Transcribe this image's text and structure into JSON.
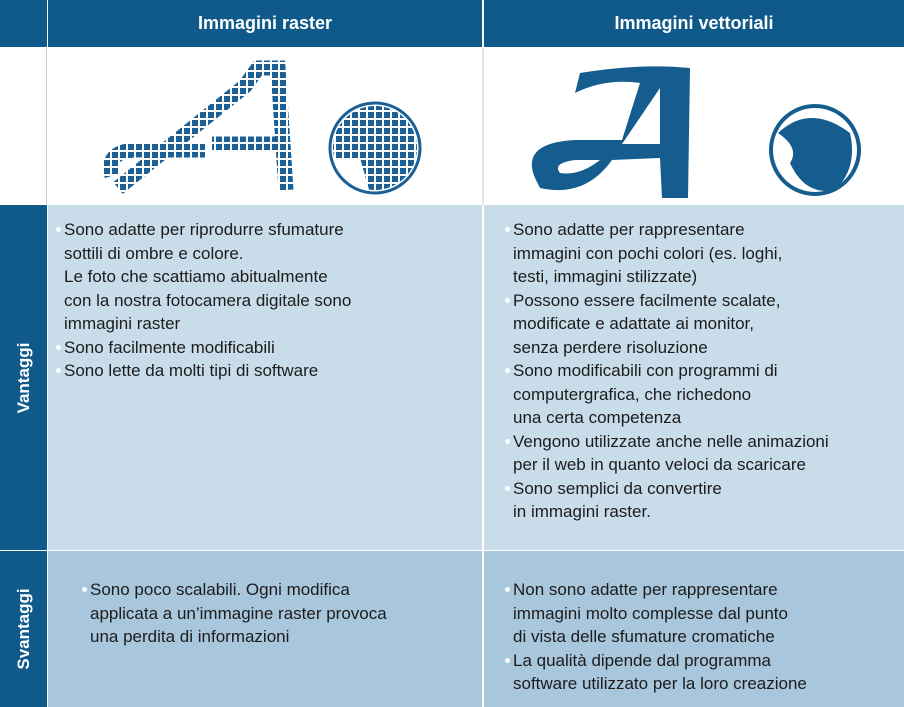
{
  "header": {
    "col1": "Immagini raster",
    "col2": "Immagini vettoriali"
  },
  "rows": [
    {
      "label": "Vantaggi",
      "raster": [
        [
          "Sono adatte per riprodurre sfumature",
          "sottili di ombre e colore.",
          "Le foto che scattiamo abitualmente",
          "con la nostra fotocamera digitale sono",
          "immagini raster"
        ],
        [
          "Sono facilmente modificabili"
        ],
        [
          "Sono lette da molti tipi di software"
        ]
      ],
      "vector": [
        [
          "Sono adatte per rappresentare",
          "immagini con pochi colori (es. loghi,",
          "testi, immagini stilizzate)"
        ],
        [
          "Possono essere facilmente scalate,",
          "modificate e adattate ai monitor,",
          "senza perdere risoluzione"
        ],
        [
          "Sono modificabili con programmi di",
          "computergrafica, che richedono",
          "una certa competenza"
        ],
        [
          "Vengono utilizzate anche nelle animazioni",
          "per il web in quanto veloci da scaricare"
        ],
        [
          "Sono semplici da convertire",
          "in immagini raster."
        ]
      ]
    },
    {
      "label": "Svantaggi",
      "raster": [
        [
          "Sono poco scalabili. Ogni modifica",
          "applicata a un’immagine raster provoca",
          "una perdita di informazioni"
        ]
      ],
      "vector": [
        [
          "Non sono adatte per rappresentare",
          "immagini molto complesse dal punto",
          "di vista delle sfumature cromatiche"
        ],
        [
          "La qualità dipende dal programma",
          "software utilizzato per la loro creazione"
        ]
      ]
    }
  ]
}
